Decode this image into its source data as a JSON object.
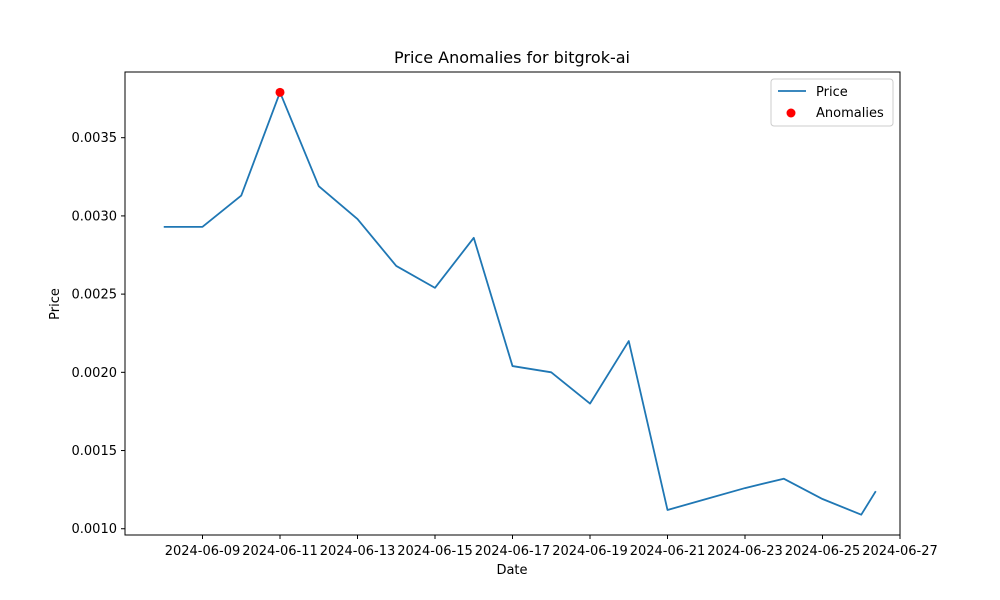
{
  "chart_data": {
    "type": "line",
    "title": "Price Anomalies for bitgrok-ai",
    "xlabel": "Date",
    "ylabel": "Price",
    "x_tick_labels": [
      "2024-06-09",
      "2024-06-11",
      "2024-06-13",
      "2024-06-15",
      "2024-06-17",
      "2024-06-19",
      "2024-06-21",
      "2024-06-23",
      "2024-06-25",
      "2024-06-27"
    ],
    "y_tick_labels": [
      "0.0010",
      "0.0015",
      "0.0020",
      "0.0025",
      "0.0030",
      "0.0035"
    ],
    "y_ticks": [
      0.001,
      0.0015,
      0.002,
      0.0025,
      0.003,
      0.0035
    ],
    "xlim": [
      "2024-06-07",
      "2024-06-27"
    ],
    "ylim": [
      0.00096,
      0.00392
    ],
    "grid": false,
    "legend_position": "top-right",
    "series": [
      {
        "name": "Price",
        "type": "line",
        "color": "#1f77b4",
        "x": [
          "2024-06-08",
          "2024-06-09",
          "2024-06-10",
          "2024-06-11",
          "2024-06-12",
          "2024-06-13",
          "2024-06-14",
          "2024-06-15",
          "2024-06-16",
          "2024-06-17",
          "2024-06-18",
          "2024-06-19",
          "2024-06-20",
          "2024-06-21",
          "2024-06-22",
          "2024-06-23",
          "2024-06-24",
          "2024-06-25",
          "2024-06-26",
          "2024-06-26T09:00"
        ],
        "values": [
          0.00293,
          0.00293,
          0.00313,
          0.00379,
          0.00319,
          0.00298,
          0.00268,
          0.00254,
          0.00286,
          0.00204,
          0.002,
          0.0018,
          0.0022,
          0.00112,
          0.00119,
          0.00126,
          0.00132,
          0.00119,
          0.00109,
          0.00124
        ]
      },
      {
        "name": "Anomalies",
        "type": "scatter",
        "color": "#ff0000",
        "x": [
          "2024-06-11"
        ],
        "values": [
          0.00379
        ]
      }
    ]
  }
}
